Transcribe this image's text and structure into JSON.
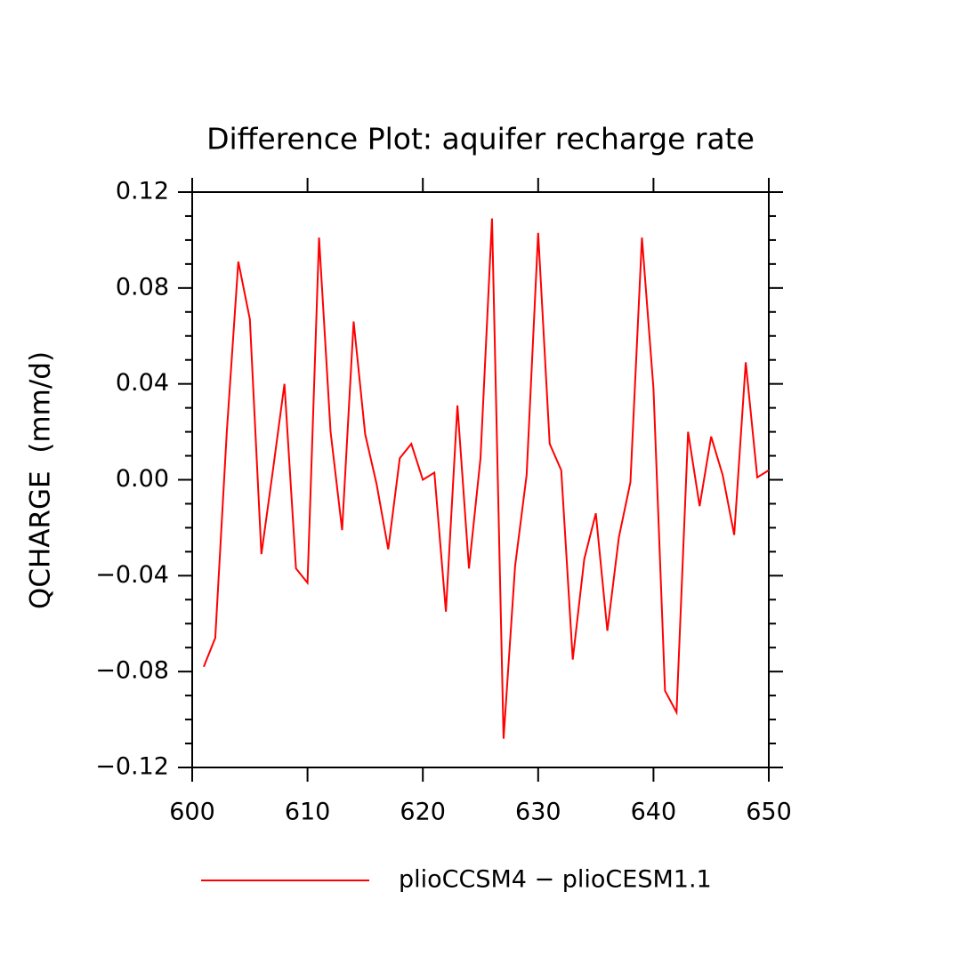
{
  "chart_data": {
    "type": "line",
    "title": "Difference Plot: aquifer recharge rate",
    "y_label": "QCHARGE  (mm/d)",
    "x": [
      601,
      602,
      603,
      604,
      605,
      606,
      607,
      608,
      609,
      610,
      611,
      612,
      613,
      614,
      615,
      616,
      617,
      618,
      619,
      620,
      621,
      622,
      623,
      624,
      625,
      626,
      627,
      628,
      629,
      630,
      631,
      632,
      633,
      634,
      635,
      636,
      637,
      638,
      639,
      640,
      641,
      642,
      643,
      644,
      645,
      646,
      647,
      648,
      649,
      650
    ],
    "series": [
      {
        "name": "plioCCSM4 − plioCESM1.1",
        "color": "#ff0000",
        "values": [
          -0.078,
          -0.066,
          0.02,
          0.091,
          0.067,
          -0.031,
          0.004,
          0.04,
          -0.037,
          -0.043,
          0.101,
          0.02,
          -0.021,
          0.066,
          0.019,
          -0.002,
          -0.029,
          0.009,
          0.015,
          0.0,
          0.003,
          -0.055,
          0.031,
          -0.037,
          0.009,
          0.109,
          -0.108,
          -0.036,
          0.002,
          0.103,
          0.015,
          0.004,
          -0.075,
          -0.033,
          -0.014,
          -0.063,
          -0.024,
          -0.001,
          0.101,
          0.038,
          -0.088,
          -0.097,
          0.02,
          -0.011,
          0.018,
          0.002,
          -0.023,
          0.049,
          0.001,
          0.004
        ]
      }
    ],
    "xlim": [
      600,
      650
    ],
    "xticks": [
      600,
      610,
      620,
      630,
      640,
      650
    ],
    "ylim": [
      -0.12,
      0.12
    ],
    "yticks": [
      {
        "value": -0.12,
        "label": "−0.12"
      },
      {
        "value": -0.08,
        "label": "−0.08"
      },
      {
        "value": -0.04,
        "label": "−0.04"
      },
      {
        "value": 0,
        "label": "0.00"
      },
      0.04,
      0.08,
      0.12
    ],
    "y_minor_ticks": [
      -0.11,
      -0.1,
      -0.09,
      -0.07,
      -0.06,
      -0.05,
      -0.03,
      -0.02,
      -0.01,
      0.01,
      0.02,
      0.03,
      0.05,
      0.06,
      0.07,
      0.09,
      0.1,
      0.11
    ],
    "legend": "bottom"
  }
}
